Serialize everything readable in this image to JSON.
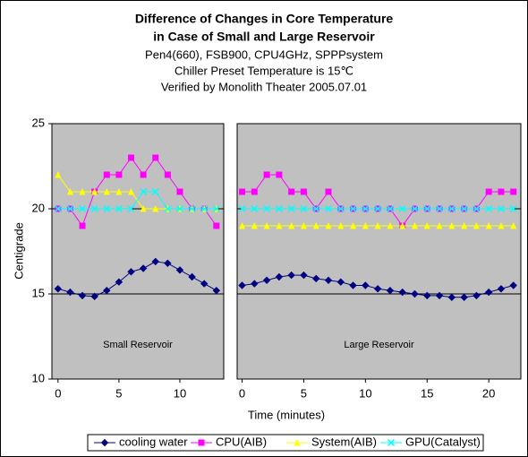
{
  "chart_data": {
    "type": "line",
    "title": [
      "Difference of Changes in Core Temperature",
      "in Case of  Small and Large Reservoir"
    ],
    "subtitle": [
      "Pen4(660), FSB900, CPU4GHz, SPPPsystem",
      "Chiller Preset Temperature is 15℃",
      "Verified by Monolith Theater 2005.07.01"
    ],
    "y_label": "Centigrade",
    "x_label": "Time (minutes)",
    "ylim": [
      10,
      25
    ],
    "yticks": [
      10,
      15,
      20,
      25
    ],
    "hlines": [
      15,
      20
    ],
    "background": "#c0c0c0",
    "legend": [
      {
        "name": "cooling water",
        "color": "#000080",
        "marker": "diamond"
      },
      {
        "name": "CPU(AIB)",
        "color": "#ff00ff",
        "marker": "square"
      },
      {
        "name": "System(AIB)",
        "color": "#ffff00",
        "marker": "triangle"
      },
      {
        "name": "GPU(Catalyst)",
        "color": "#00ffff",
        "marker": "x"
      }
    ],
    "panels": [
      {
        "annotation": "Small Reservoir",
        "xlim": [
          -0.5,
          13.6
        ],
        "xticks": [
          0,
          5,
          10
        ],
        "x": [
          0,
          1,
          2,
          3,
          4,
          5,
          6,
          7,
          8,
          9,
          10,
          11,
          12,
          13
        ],
        "series": [
          {
            "values": [
              15.3,
              15.1,
              14.9,
              14.85,
              15.2,
              15.7,
              16.3,
              16.5,
              16.9,
              16.8,
              16.4,
              16.0,
              15.6,
              15.2
            ]
          },
          {
            "values": [
              20,
              20,
              19,
              21,
              22,
              22,
              23,
              22,
              23,
              22,
              21,
              20,
              20,
              19
            ]
          },
          {
            "values": [
              22,
              21,
              21,
              21,
              21,
              21,
              21,
              20,
              20,
              20,
              20,
              20,
              20,
              20
            ]
          },
          {
            "values": [
              20,
              20,
              20,
              20,
              20,
              20,
              20,
              21,
              21,
              20,
              20,
              20,
              20,
              20
            ]
          }
        ]
      },
      {
        "annotation": "Large Reservoir",
        "xlim": [
          -0.4,
          22.6
        ],
        "xticks": [
          0,
          5,
          10,
          15,
          20
        ],
        "x": [
          0,
          1,
          2,
          3,
          4,
          5,
          6,
          7,
          8,
          9,
          10,
          11,
          12,
          13,
          14,
          15,
          16,
          17,
          18,
          19,
          20,
          21,
          22
        ],
        "series": [
          {
            "values": [
              15.5,
              15.6,
              15.8,
              16.0,
              16.1,
              16.1,
              15.9,
              15.8,
              15.7,
              15.5,
              15.5,
              15.3,
              15.2,
              15.1,
              15.0,
              14.9,
              14.9,
              14.8,
              14.8,
              14.9,
              15.1,
              15.3,
              15.5
            ]
          },
          {
            "values": [
              21,
              21,
              22,
              22,
              21,
              21,
              20,
              21,
              20,
              20,
              20,
              20,
              20,
              19,
              20,
              20,
              20,
              20,
              20,
              20,
              21,
              21,
              21
            ]
          },
          {
            "values": [
              19,
              19,
              19,
              19,
              19,
              19,
              19,
              19,
              19,
              19,
              19,
              19,
              19,
              19,
              19,
              19,
              19,
              19,
              19,
              19,
              19,
              19,
              19
            ]
          },
          {
            "values": [
              20,
              20,
              20,
              20,
              20,
              20,
              20,
              20,
              20,
              20,
              20,
              20,
              20,
              20,
              20,
              20,
              20,
              20,
              20,
              20,
              20,
              20,
              20
            ]
          }
        ]
      }
    ]
  }
}
